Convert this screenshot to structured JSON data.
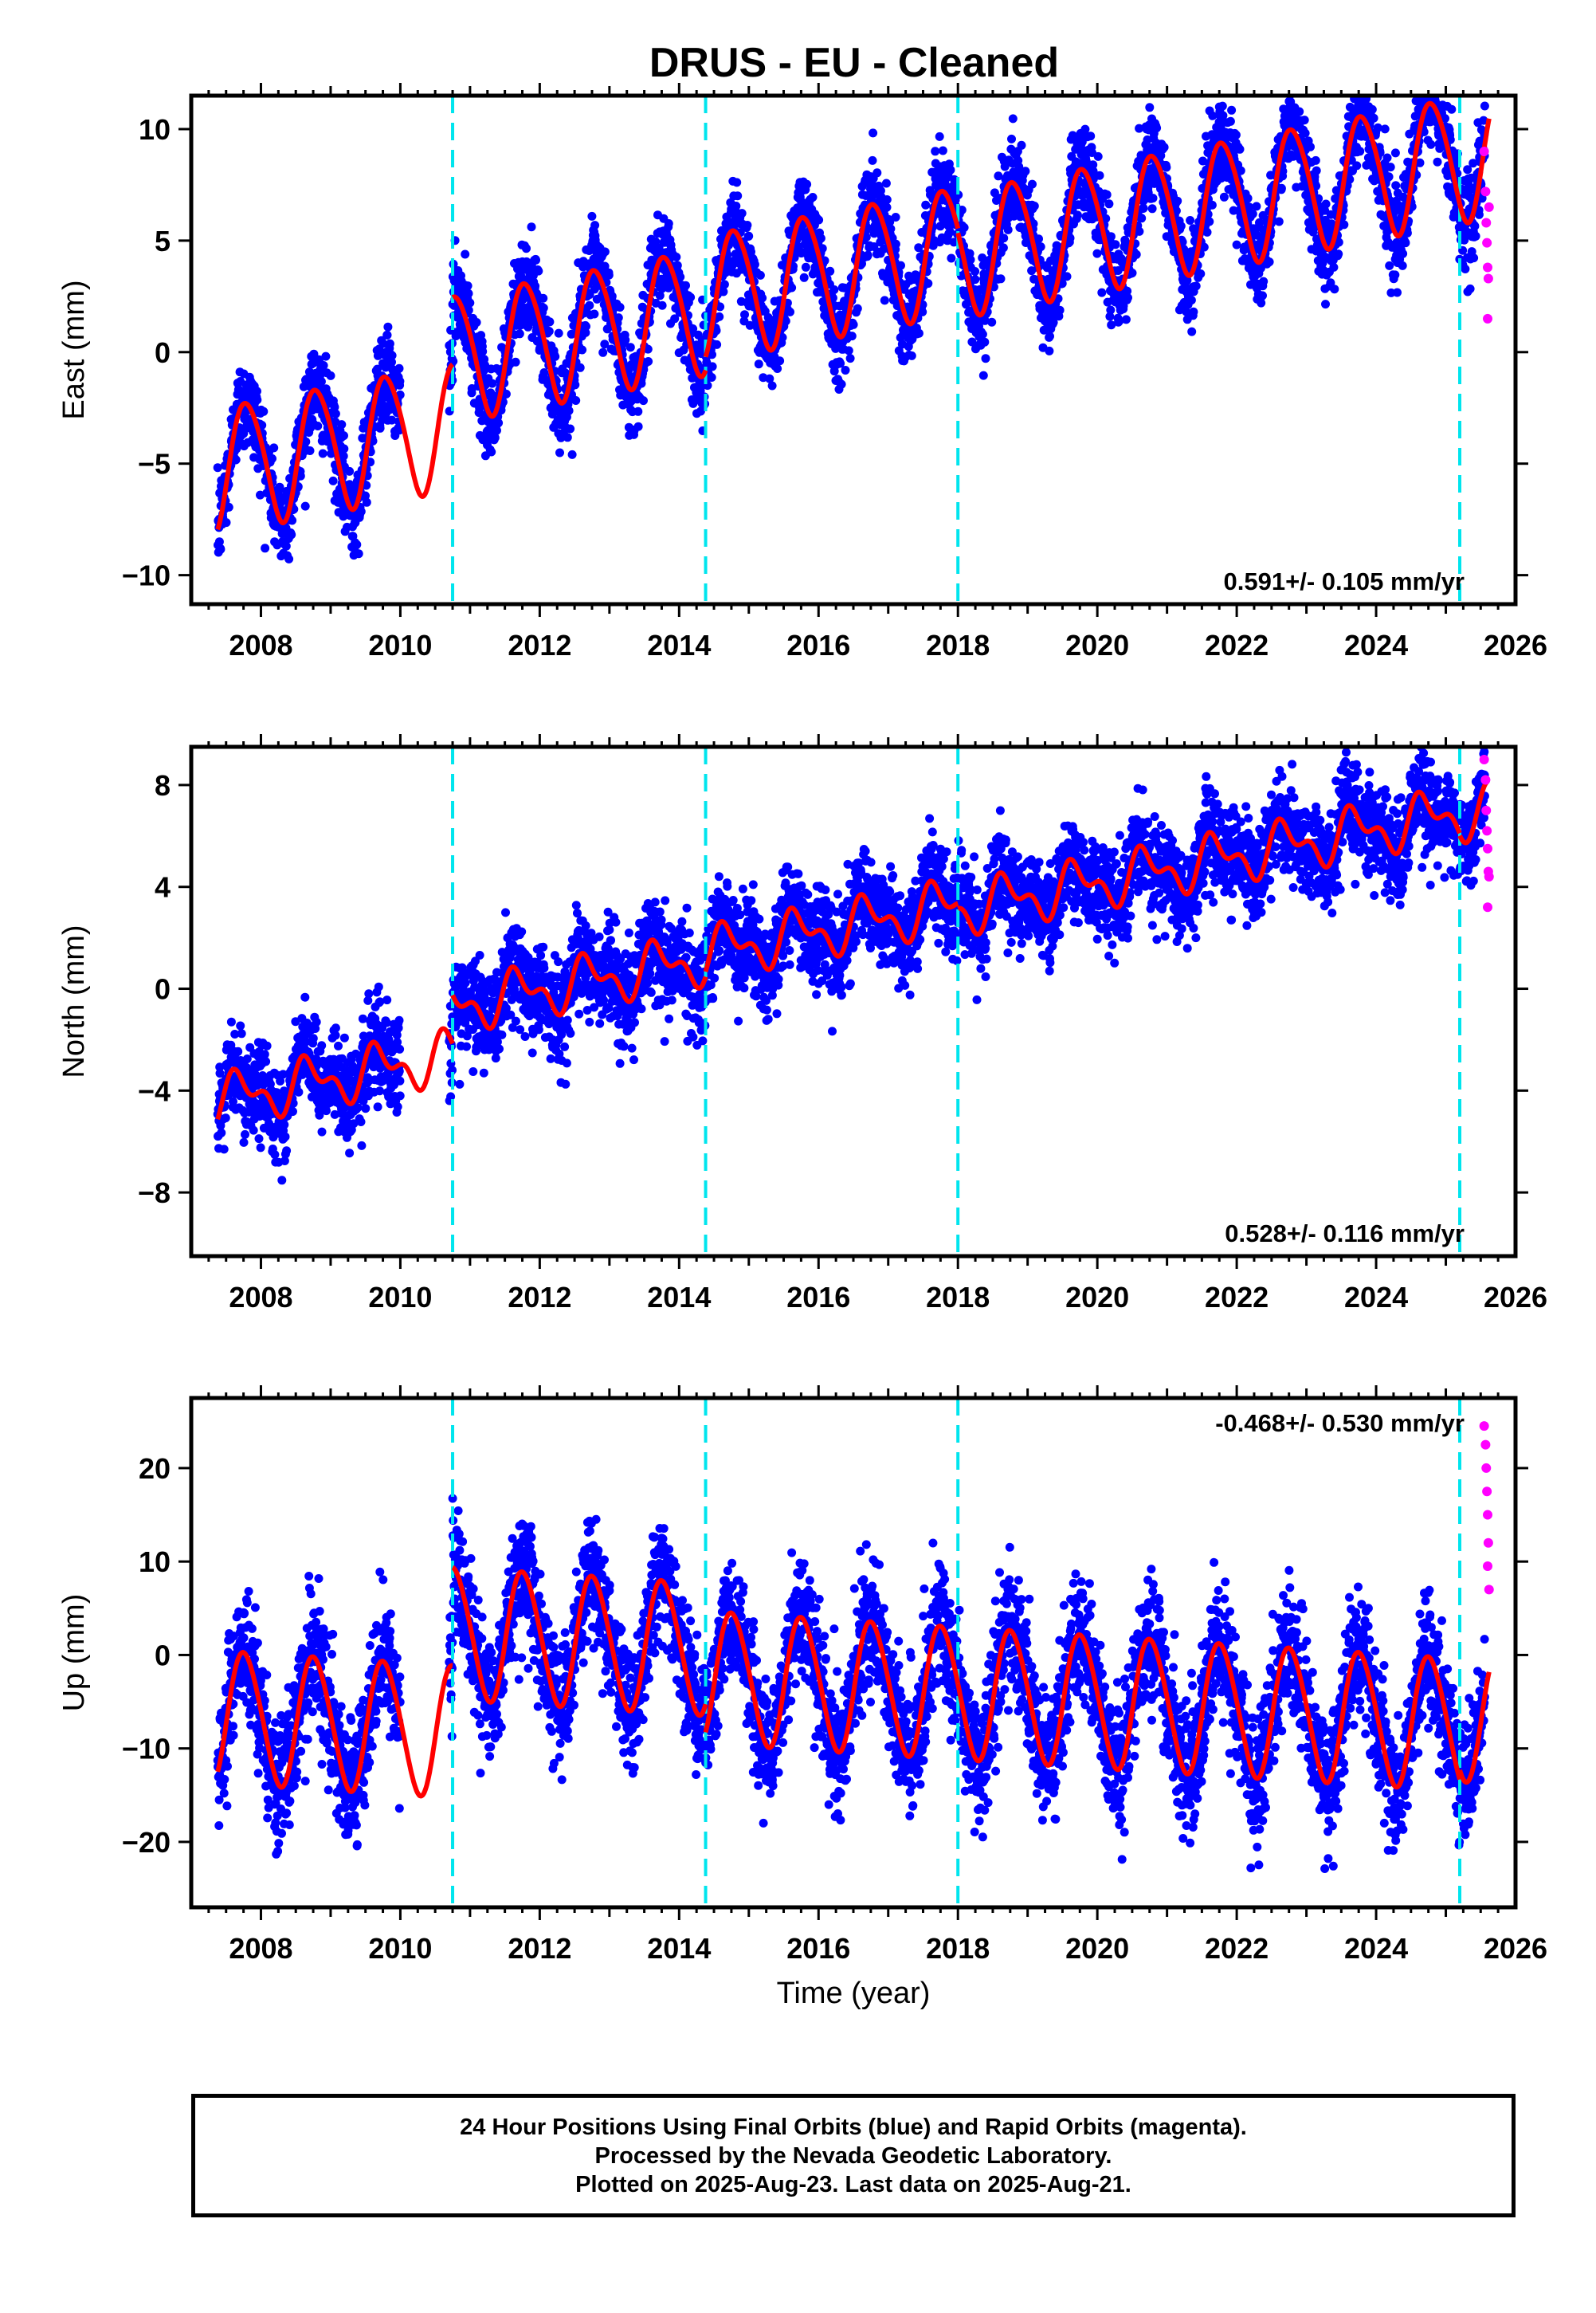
{
  "figure_title": "DRUS  - EU - Cleaned",
  "footer": {
    "line1": "24 Hour Positions Using Final Orbits (blue) and Rapid Orbits (magenta).",
    "line2": "Processed by the Nevada Geodetic Laboratory.",
    "line3": "Plotted on 2025-Aug-23. Last data on 2025-Aug-21."
  },
  "colors": {
    "final": "#0000ff",
    "rapid": "#ff00ff",
    "model": "#ff0000",
    "steps": "#00e5ee"
  },
  "chart_data": [
    {
      "type": "scatter",
      "ylabel": "East (mm)",
      "xlim": [
        2007.0,
        2026.0
      ],
      "ylim": [
        -11.3,
        11.5
      ],
      "xticks": [
        2008,
        2010,
        2012,
        2014,
        2016,
        2018,
        2020,
        2022,
        2024,
        2026
      ],
      "yticks": [
        -10,
        -5,
        0,
        5,
        10
      ],
      "rate_label": "0.591+/- 0.105 mm/yr",
      "steps": [
        2010.75,
        2014.38,
        2018.0,
        2025.2
      ],
      "model": {
        "start": 2007.38,
        "end": 2025.62,
        "offsets": [
          -5.2,
          -2.2,
          -1.6,
          -1.8,
          -1.8
        ],
        "rate": 0.591,
        "annual": 2.8,
        "annual_phase": 2007.55,
        "semiannual": 0.3,
        "semiannual_phase": 2007.5,
        "gap": [
          2010.0,
          2010.7
        ],
        "noise": 1.0
      },
      "rapid_points": [
        [
          2025.55,
          9.0
        ],
        [
          2025.57,
          7.2
        ],
        [
          2025.58,
          5.8
        ],
        [
          2025.59,
          4.9
        ],
        [
          2025.6,
          3.8
        ],
        [
          2025.61,
          3.3
        ],
        [
          2025.6,
          1.5
        ],
        [
          2025.62,
          6.5
        ]
      ]
    },
    {
      "type": "scatter",
      "ylabel": "North (mm)",
      "xlim": [
        2007.0,
        2026.0
      ],
      "ylim": [
        -10.5,
        9.5
      ],
      "xticks": [
        2008,
        2010,
        2012,
        2014,
        2016,
        2018,
        2020,
        2022,
        2024,
        2026
      ],
      "yticks": [
        -8,
        -4,
        0,
        4,
        8
      ],
      "rate_label": "0.528+/- 0.116 mm/yr",
      "steps": [
        2010.75,
        2014.38,
        2018.0,
        2025.2
      ],
      "model": {
        "start": 2007.38,
        "end": 2025.62,
        "offsets": [
          -4.4,
          -2.5,
          -2.3,
          -2.5,
          -2.6
        ],
        "rate": 0.528,
        "annual": 0.8,
        "annual_phase": 2007.45,
        "semiannual": 0.5,
        "semiannual_phase": 2007.45,
        "gap": [
          2010.0,
          2010.7
        ],
        "noise": 0.9
      },
      "rapid_points": [
        [
          2025.55,
          9.0
        ],
        [
          2025.57,
          8.2
        ],
        [
          2025.58,
          7.0
        ],
        [
          2025.59,
          6.2
        ],
        [
          2025.6,
          5.5
        ],
        [
          2025.61,
          4.6
        ],
        [
          2025.6,
          3.2
        ],
        [
          2025.62,
          4.4
        ]
      ]
    },
    {
      "type": "scatter",
      "xlabel": "Time (year)",
      "ylabel": "Up (mm)",
      "xlim": [
        2007.0,
        2026.0
      ],
      "ylim": [
        -27.0,
        27.5
      ],
      "xticks": [
        2008,
        2010,
        2012,
        2014,
        2016,
        2018,
        2020,
        2022,
        2024,
        2026
      ],
      "yticks": [
        -20,
        -10,
        0,
        10,
        20
      ],
      "rate_label": "-0.468+/- 0.530 mm/yr",
      "steps": [
        2010.75,
        2014.38,
        2018.0,
        2025.2
      ],
      "model": {
        "start": 2007.38,
        "end": 2025.62,
        "offsets": [
          -6.5,
          4.0,
          1.0,
          1.0,
          2.0
        ],
        "rate": -0.468,
        "annual": 7.0,
        "annual_phase": 2007.52,
        "semiannual": 0.6,
        "semiannual_phase": 2007.5,
        "gap": [
          2010.0,
          2010.7
        ],
        "noise": 3.3
      },
      "rapid_points": [
        [
          2025.55,
          24.5
        ],
        [
          2025.57,
          22.5
        ],
        [
          2025.58,
          20.0
        ],
        [
          2025.59,
          17.5
        ],
        [
          2025.6,
          15.0
        ],
        [
          2025.61,
          12.0
        ],
        [
          2025.6,
          9.5
        ],
        [
          2025.62,
          7.0
        ]
      ]
    }
  ]
}
